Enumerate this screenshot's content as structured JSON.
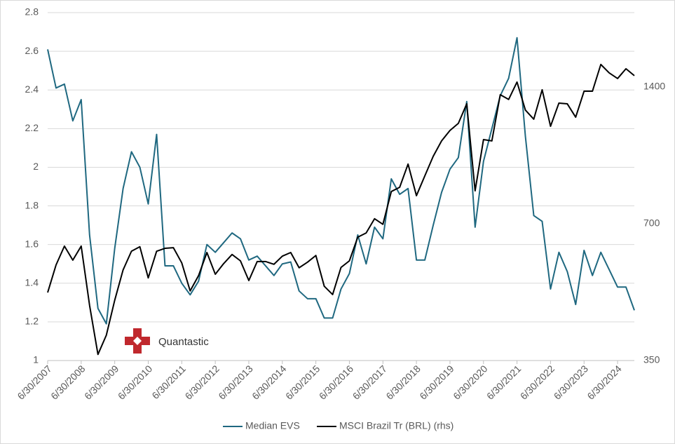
{
  "chart_data": {
    "type": "line",
    "categories": [
      "6/30/2007",
      null,
      null,
      null,
      "6/30/2008",
      null,
      null,
      null,
      "6/30/2009",
      null,
      null,
      null,
      "6/30/2010",
      null,
      null,
      null,
      "6/30/2011",
      null,
      null,
      null,
      "6/30/2012",
      null,
      null,
      null,
      "6/30/2013",
      null,
      null,
      null,
      "6/30/2014",
      null,
      null,
      null,
      "6/30/2015",
      null,
      null,
      null,
      "6/30/2016",
      null,
      null,
      null,
      "6/30/2017",
      null,
      null,
      null,
      "6/30/2018",
      null,
      null,
      null,
      "6/30/2019",
      null,
      null,
      null,
      "6/30/2020",
      null,
      null,
      null,
      "6/30/2021",
      null,
      null,
      null,
      "6/30/2022",
      null,
      null,
      null,
      "6/30/2023",
      null,
      null,
      null,
      "6/30/2024",
      null,
      null
    ],
    "series": [
      {
        "name": "Median EVS",
        "color": "#1f6880",
        "values": [
          2.61,
          2.41,
          2.43,
          2.24,
          2.35,
          1.65,
          1.27,
          1.19,
          1.58,
          1.89,
          2.08,
          2.0,
          1.81,
          2.17,
          1.49,
          1.49,
          1.4,
          1.34,
          1.41,
          1.6,
          1.56,
          1.61,
          1.66,
          1.63,
          1.52,
          1.54,
          1.49,
          1.44,
          1.5,
          1.51,
          1.36,
          1.32,
          1.32,
          1.22,
          1.22,
          1.37,
          1.45,
          1.65,
          1.5,
          1.69,
          1.63,
          1.94,
          1.86,
          1.89,
          1.52,
          1.52,
          1.7,
          1.87,
          1.99,
          2.05,
          2.34,
          1.69,
          2.03,
          2.2,
          2.37,
          2.46,
          2.67,
          2.16,
          1.75,
          1.72,
          1.37,
          1.56,
          1.46,
          1.29,
          1.57,
          1.44,
          1.56,
          1.47,
          1.38,
          1.38,
          1.26
        ]
      },
      {
        "name": "MSCI Brazil Tr (BRL) (rhs)",
        "color": "#000000",
        "axis": "y2",
        "values": [
          494,
          568,
          625,
          582,
          625,
          463,
          361,
          398,
          475,
          554,
          609,
          623,
          532,
          609,
          618,
          620,
          574,
          498,
          538,
          605,
          542,
          572,
          599,
          580,
          525,
          578,
          578,
          570,
          594,
          605,
          560,
          576,
          596,
          510,
          489,
          561,
          580,
          654,
          668,
          718,
          698,
          824,
          842,
          947,
          807,
          892,
          985,
          1065,
          1123,
          1164,
          1285,
          827,
          1072,
          1065,
          1346,
          1314,
          1435,
          1245,
          1189,
          1380,
          1147,
          1290,
          1285,
          1201,
          1370,
          1370,
          1569,
          1503,
          1461,
          1535,
          1482
        ]
      }
    ],
    "ylim": [
      1,
      2.8
    ],
    "yticks": [
      1,
      1.2,
      1.4,
      1.6,
      1.8,
      2,
      2.2,
      2.4,
      2.6,
      2.8
    ],
    "y2lim": [
      350,
      2040
    ],
    "y2ticks": [
      350,
      700,
      1400
    ],
    "y2log": true,
    "grid": true,
    "legend": "bottom"
  },
  "logo": {
    "text": "Quantastic"
  }
}
